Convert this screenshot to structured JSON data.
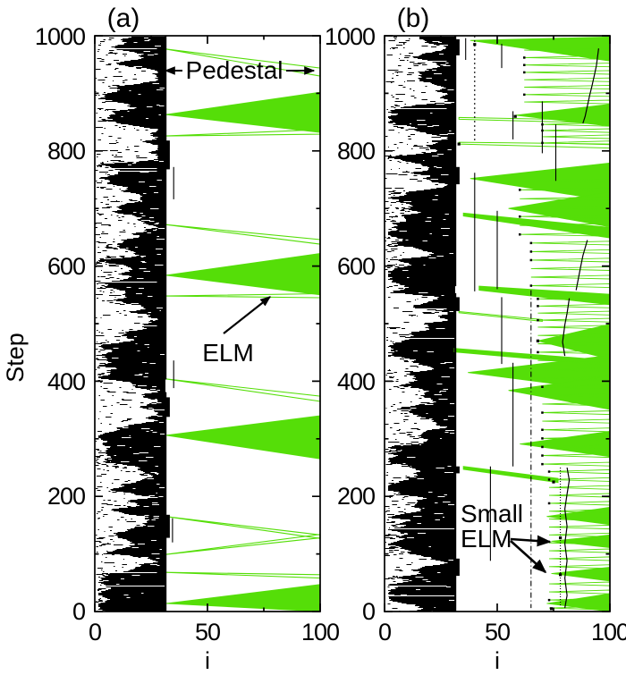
{
  "figure": {
    "background": "#FFFFFF",
    "ink": "#000000",
    "elm_green": "#55DE08"
  },
  "chart_data": [
    {
      "type": "heatmap",
      "title": "(a)",
      "xlabel": "i",
      "ylabel": "Step",
      "xlim": [
        0,
        100
      ],
      "ylim": [
        0,
        1000
      ],
      "x_ticks": [
        0,
        50,
        100
      ],
      "x_minor_ticks": [
        25,
        75
      ],
      "y_ticks": [
        0,
        200,
        400,
        600,
        800,
        1000
      ],
      "y_minor_ticks": [
        100,
        300,
        500,
        700,
        900
      ],
      "grid": false,
      "legend": null,
      "turbulence_zone": {
        "i_min": 0,
        "i_max": 31
      },
      "pedestal_edge_i": 31.4,
      "edge_blobs": [
        [
          818,
          768
        ],
        [
          372,
          338
        ],
        [
          168,
          128
        ]
      ],
      "edge_gaps": [
        [
          403,
          381
        ]
      ],
      "black_verticals": [
        {
          "i": 35,
          "from": 772,
          "to": 716
        },
        {
          "i": 35,
          "from": 436,
          "to": 388
        },
        {
          "i": 34.5,
          "from": 162,
          "to": 120
        }
      ],
      "elm_events": [
        {
          "apex_step": 977,
          "right_top": 944,
          "right_bottom": 930
        },
        {
          "apex_step": 863,
          "right_top": 902,
          "right_bottom": 832
        },
        {
          "apex_step": 826,
          "right_top": 837,
          "right_bottom": 829
        },
        {
          "apex_step": 672,
          "right_top": 646,
          "right_bottom": 638
        },
        {
          "apex_step": 584,
          "right_top": 622,
          "right_bottom": 550
        },
        {
          "apex_step": 548,
          "right_top": 552,
          "right_bottom": 545
        },
        {
          "apex_step": 404,
          "right_top": 374,
          "right_bottom": 365
        },
        {
          "apex_step": 306,
          "right_top": 340,
          "right_bottom": 265
        },
        {
          "apex_step": 165,
          "right_top": 133,
          "right_bottom": 127
        },
        {
          "apex_step": 99,
          "right_top": 134,
          "right_bottom": 128
        },
        {
          "apex_step": 68,
          "right_top": 64,
          "right_bottom": 58
        },
        {
          "apex_step": 14,
          "right_top": 47,
          "right_bottom": 0
        }
      ],
      "annotations": [
        {
          "kind": "double-arrow",
          "text": "Pedestal",
          "step": 941
        },
        {
          "kind": "arrow",
          "text": "ELM",
          "points_to": "large ELM avalanche at step 584"
        }
      ]
    },
    {
      "type": "heatmap",
      "title": "(b)",
      "xlabel": "i",
      "ylabel": "Step",
      "xlim": [
        0,
        100
      ],
      "ylim": [
        0,
        1000
      ],
      "x_ticks": [
        0,
        50,
        100
      ],
      "x_minor_ticks": [
        25,
        75
      ],
      "y_ticks": [
        0,
        200,
        400,
        600,
        800,
        1000
      ],
      "y_minor_ticks": [
        100,
        300,
        500,
        700,
        900
      ],
      "grid": false,
      "legend": null,
      "turbulence_zone": {
        "i_min": 0,
        "i_max": 31
      },
      "pedestal_edge_i": 31.4,
      "edge_blobs": [
        [
          994,
          966
        ],
        [
          772,
          742
        ],
        [
          546,
          522
        ],
        [
          252,
          240
        ],
        [
          92,
          62
        ]
      ],
      "edge_gaps": [
        [
          565,
          553
        ]
      ],
      "elm_events": [
        {
          "apex_i": 38,
          "apex_step": 992,
          "right_top": 998,
          "right_bottom": 956
        },
        {
          "apex_i": 58,
          "apex_step": 862,
          "right_top": 881,
          "right_bottom": 843
        },
        {
          "apex_i": 38,
          "apex_step": 752,
          "right_top": 779,
          "right_bottom": 713
        },
        {
          "apex_i": 55,
          "apex_step": 700,
          "right_top": 729,
          "right_bottom": 668
        },
        {
          "apex_i": 68,
          "apex_step": 470,
          "right_top": 499,
          "right_bottom": 438
        },
        {
          "apex_i": 37,
          "apex_step": 415,
          "right_top": 445,
          "right_bottom": 383
        },
        {
          "apex_i": 55,
          "apex_step": 384,
          "right_top": 409,
          "right_bottom": 351
        },
        {
          "apex_i": 60,
          "apex_step": 291,
          "right_top": 313,
          "right_bottom": 269
        },
        {
          "apex_i": 72,
          "apex_step": 165,
          "right_top": 181,
          "right_bottom": 151
        },
        {
          "apex_i": 74,
          "apex_step": 122,
          "right_top": 133,
          "right_bottom": 111
        },
        {
          "apex_i": 74,
          "apex_step": 66,
          "right_top": 77,
          "right_bottom": 53
        },
        {
          "apex_i": 72,
          "apex_step": 14,
          "right_top": 31,
          "right_bottom": 0
        }
      ],
      "bands": [
        {
          "i0": 33,
          "top0": 858,
          "bot0": 855,
          "top1": 853,
          "bot1": 848,
          "thin": true
        },
        {
          "i0": 33,
          "top0": 815,
          "bot0": 812,
          "top1": 812,
          "bot1": 805,
          "thin": true
        },
        {
          "i0": 35,
          "top0": 692,
          "bot0": 687,
          "top1": 667,
          "bot1": 649
        },
        {
          "i0": 42,
          "top0": 565,
          "bot0": 558,
          "top1": 551,
          "bot1": 533
        },
        {
          "i0": 33,
          "top0": 521,
          "bot0": 519,
          "i1": 70,
          "top1": 507,
          "bot1": 504,
          "thin": true
        },
        {
          "i0": 31,
          "top0": 457,
          "bot0": 451,
          "top1": 436,
          "bot1": 427
        },
        {
          "i0": 35,
          "top0": 252,
          "bot0": 247,
          "i1": 77,
          "top1": 231,
          "bot1": 224
        }
      ],
      "stripe_stacks": [
        {
          "i0": 62,
          "from": 975,
          "to": 885,
          "n": 8
        },
        {
          "i0": 70,
          "from": 846,
          "to": 814,
          "n": 4
        },
        {
          "i0": 60,
          "from": 748,
          "to": 655,
          "n": 7
        },
        {
          "i0": 65,
          "from": 640,
          "to": 566,
          "n": 6
        },
        {
          "i0": 68,
          "from": 543,
          "to": 506,
          "n": 4
        },
        {
          "i0": 68,
          "from": 494,
          "to": 436,
          "n": 5
        },
        {
          "i0": 70,
          "from": 420,
          "to": 256,
          "n": 12
        },
        {
          "i0": 73,
          "from": 243,
          "to": 78,
          "n": 13
        },
        {
          "i0": 73,
          "from": 48,
          "to": 6,
          "n": 4
        }
      ],
      "black_verticals": [
        {
          "i": 40,
          "from": 1000,
          "to": 815,
          "dash": "2 3"
        },
        {
          "i": 36,
          "from": 996,
          "to": 958
        },
        {
          "i": 52,
          "from": 986,
          "to": 944
        },
        {
          "i": 57,
          "from": 869,
          "to": 820
        },
        {
          "i": 70,
          "from": 886,
          "to": 796
        },
        {
          "i": 76,
          "from": 846,
          "to": 748
        },
        {
          "i": 40,
          "from": 762,
          "to": 556
        },
        {
          "i": 50,
          "from": 696,
          "to": 560
        },
        {
          "i": 52,
          "from": 546,
          "to": 430
        },
        {
          "i": 65,
          "from": 558,
          "to": 6,
          "dash": "6 3 1 3"
        },
        {
          "i": 57,
          "from": 432,
          "to": 252
        },
        {
          "i": 47,
          "from": 252,
          "to": 88
        },
        {
          "i": 78,
          "from": 250,
          "to": 8,
          "dash": "1 2"
        }
      ],
      "staircases": [
        [
          [
            95,
            978
          ],
          [
            94,
            948
          ],
          [
            93,
            930
          ],
          [
            92,
            912
          ],
          [
            91,
            896
          ],
          [
            90,
            878
          ],
          [
            89,
            860
          ],
          [
            88,
            848
          ]
        ],
        [
          [
            90,
            645
          ],
          [
            88,
            618
          ],
          [
            87,
            598
          ],
          [
            86,
            578
          ],
          [
            85,
            558
          ]
        ],
        [
          [
            82,
            544
          ],
          [
            81,
            518
          ],
          [
            80,
            498
          ],
          [
            79,
            468
          ],
          [
            80,
            444
          ]
        ],
        [
          [
            81,
            250
          ],
          [
            82,
            228
          ],
          [
            81,
            204
          ],
          [
            80,
            178
          ],
          [
            81,
            148
          ],
          [
            80,
            118
          ],
          [
            81,
            88
          ],
          [
            80,
            58
          ],
          [
            81,
            28
          ],
          [
            80,
            6
          ]
        ]
      ],
      "dots": [
        [
          40,
          985
        ],
        [
          33,
          812
        ],
        [
          75,
          225
        ],
        [
          78,
          128
        ],
        [
          78,
          64
        ],
        [
          74,
          5
        ],
        [
          58,
          860
        ],
        [
          68,
          470
        ]
      ],
      "annotations": [
        {
          "kind": "arrow2",
          "lines": [
            "Small",
            "ELM"
          ],
          "points_to": "small ELM avalanches at steps 122 and 66"
        }
      ]
    }
  ]
}
